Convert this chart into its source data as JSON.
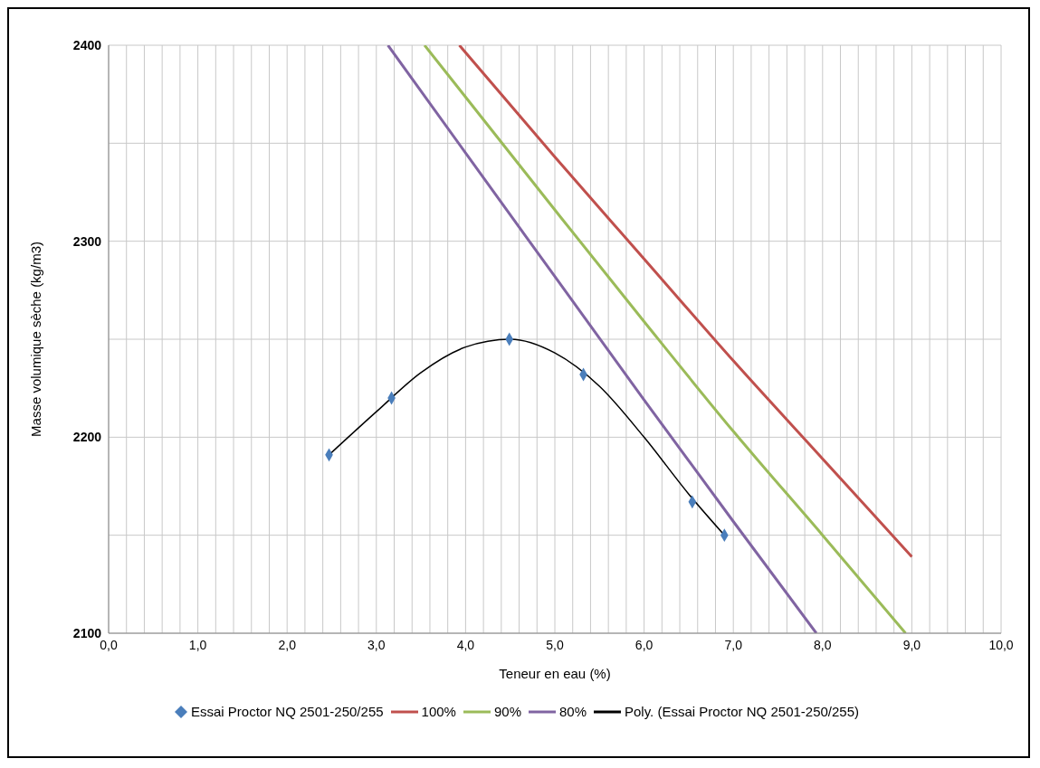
{
  "chart_data": {
    "type": "line",
    "xlabel": "Teneur en eau (%)",
    "ylabel": "Masse volumique sèche (kg/m3)",
    "xlim": [
      0,
      10
    ],
    "ylim": [
      2100,
      2400
    ],
    "xticks": [
      {
        "value": 0,
        "label": "0,0"
      },
      {
        "value": 0.2,
        "label": null
      },
      {
        "value": 0.4,
        "label": null
      },
      {
        "value": 0.6,
        "label": null
      },
      {
        "value": 0.8,
        "label": null
      },
      {
        "value": 1,
        "label": "1,0"
      },
      {
        "value": 1.2,
        "label": null
      },
      {
        "value": 1.4,
        "label": null
      },
      {
        "value": 1.6,
        "label": null
      },
      {
        "value": 1.8,
        "label": null
      },
      {
        "value": 2,
        "label": "2,0"
      },
      {
        "value": 2.2,
        "label": null
      },
      {
        "value": 2.4,
        "label": null
      },
      {
        "value": 2.6,
        "label": null
      },
      {
        "value": 2.8,
        "label": null
      },
      {
        "value": 3,
        "label": "3,0"
      },
      {
        "value": 3.2,
        "label": null
      },
      {
        "value": 3.4,
        "label": null
      },
      {
        "value": 3.6,
        "label": null
      },
      {
        "value": 3.8,
        "label": null
      },
      {
        "value": 4,
        "label": "4,0"
      },
      {
        "value": 4.2,
        "label": null
      },
      {
        "value": 4.4,
        "label": null
      },
      {
        "value": 4.6,
        "label": null
      },
      {
        "value": 4.8,
        "label": null
      },
      {
        "value": 5,
        "label": "5,0"
      },
      {
        "value": 5.2,
        "label": null
      },
      {
        "value": 5.4,
        "label": null
      },
      {
        "value": 5.6,
        "label": null
      },
      {
        "value": 5.8,
        "label": null
      },
      {
        "value": 6,
        "label": "6,0"
      },
      {
        "value": 6.2,
        "label": null
      },
      {
        "value": 6.4,
        "label": null
      },
      {
        "value": 6.6,
        "label": null
      },
      {
        "value": 6.8,
        "label": null
      },
      {
        "value": 7,
        "label": "7,0"
      },
      {
        "value": 7.2,
        "label": null
      },
      {
        "value": 7.4,
        "label": null
      },
      {
        "value": 7.6,
        "label": null
      },
      {
        "value": 7.8,
        "label": null
      },
      {
        "value": 8,
        "label": "8,0"
      },
      {
        "value": 8.2,
        "label": null
      },
      {
        "value": 8.4,
        "label": null
      },
      {
        "value": 8.6,
        "label": null
      },
      {
        "value": 8.8,
        "label": null
      },
      {
        "value": 9,
        "label": "9,0"
      },
      {
        "value": 9.2,
        "label": null
      },
      {
        "value": 9.4,
        "label": null
      },
      {
        "value": 9.6,
        "label": null
      },
      {
        "value": 9.8,
        "label": null
      },
      {
        "value": 10,
        "label": "10,0"
      }
    ],
    "yticks": [
      2100,
      {
        "value": 2150,
        "label": null
      },
      2200,
      {
        "value": 2250,
        "label": null
      },
      2300,
      {
        "value": 2350,
        "label": null
      },
      2400
    ],
    "grid": true,
    "legend": "bottom",
    "series": [
      {
        "name": "Essai Proctor NQ 2501-250/255",
        "type": "scatter",
        "marker": "diamond",
        "color": "#4a7ebb",
        "x": [
          2.47,
          3.17,
          4.49,
          5.32,
          6.54,
          6.9
        ],
        "values": [
          2191,
          2220,
          2250,
          2232,
          2167,
          2150
        ]
      },
      {
        "name": "100%",
        "marker": "none",
        "color": "#c0504d",
        "x": [
          3.93,
          5,
          6,
          7,
          8,
          9
        ],
        "values": [
          2400,
          2343,
          2291,
          2239,
          2189,
          2139
        ]
      },
      {
        "name": "90%",
        "marker": "none",
        "color": "#9bbb59",
        "x": [
          3.54,
          5,
          6,
          7,
          8,
          8.93
        ],
        "values": [
          2400,
          2316,
          2259,
          2203,
          2150,
          2100
        ]
      },
      {
        "name": "80%",
        "marker": "none",
        "color": "#8064a2",
        "x": [
          3.13,
          4,
          5,
          6,
          7,
          7.93
        ],
        "values": [
          2400,
          2345,
          2282,
          2219,
          2157,
          2100
        ]
      },
      {
        "name": "Poly. (Essai Proctor NQ 2501-250/255)",
        "marker": "none",
        "color": "#000000",
        "x": [
          2.47,
          3.0,
          3.5,
          4.0,
          4.5,
          5.0,
          5.5,
          6.0,
          6.5,
          6.9
        ],
        "values": [
          2191,
          2213,
          2233,
          2246,
          2250,
          2243,
          2226,
          2200,
          2171,
          2150
        ]
      }
    ]
  }
}
